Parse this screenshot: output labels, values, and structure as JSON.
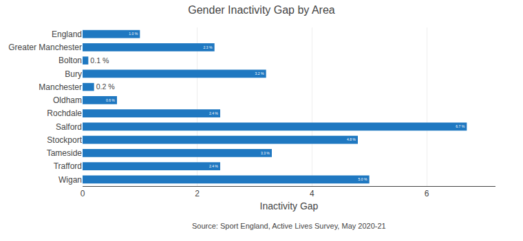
{
  "chart_data": {
    "type": "bar",
    "orientation": "horizontal",
    "title": "Gender Inactivity Gap by Area",
    "x_label": "Inactivity Gap",
    "annotations": [
      "Source: Sport England, Active Lives Survey, May 2020-21"
    ],
    "categories": [
      "England",
      "Greater Manchester",
      "Bolton",
      "Bury",
      "Manchester",
      "Oldham",
      "Rochdale",
      "Salford",
      "Stockport",
      "Tameside",
      "Trafford",
      "Wigan"
    ],
    "values": [
      1.0,
      2.3,
      0.1,
      3.2,
      0.2,
      0.6,
      2.4,
      6.7,
      4.8,
      3.3,
      2.4,
      5.0
    ],
    "value_labels": [
      "1.0 %",
      "2.3 %",
      "0.1 %",
      "3.2 %",
      "0.2 %",
      "0.6 %",
      "2.4 %",
      "6.7 %",
      "4.8 %",
      "3.3 %",
      "2.4 %",
      "5.0 %"
    ],
    "data_labels": true,
    "color": "#1F78C1",
    "xlim": [
      0,
      7.2
    ],
    "xticks": [
      0,
      2,
      4,
      6
    ],
    "grid": true
  }
}
